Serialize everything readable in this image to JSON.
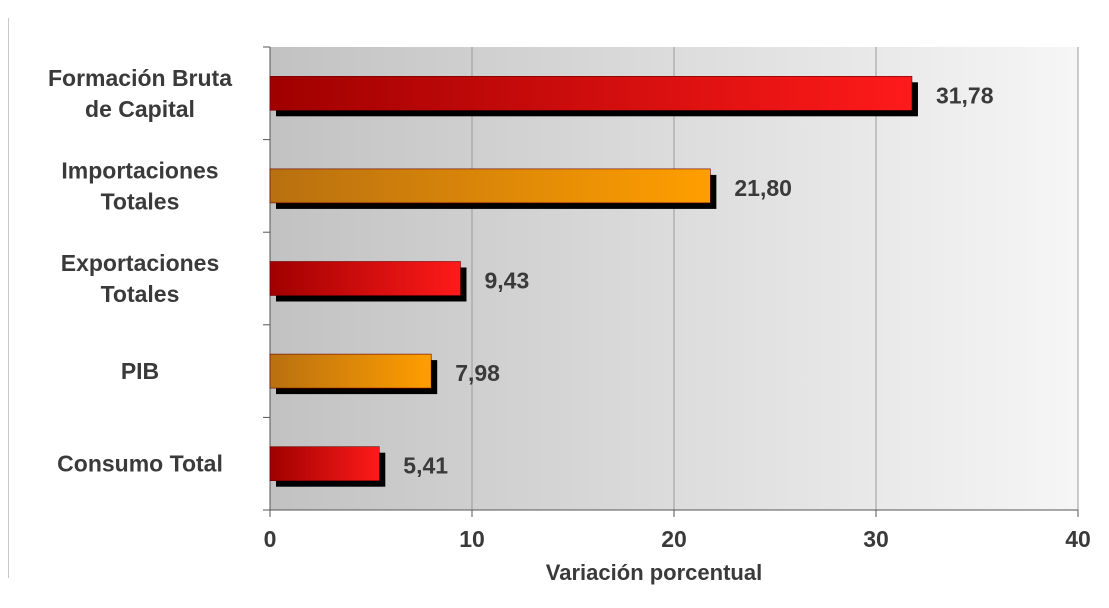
{
  "chart_data": {
    "type": "bar",
    "orientation": "horizontal",
    "categories": [
      [
        "Formación Bruta",
        "de Capital"
      ],
      [
        "Importaciones",
        "Totales"
      ],
      [
        "Exportaciones",
        "Totales"
      ],
      [
        "PIB"
      ],
      [
        "Consumo Total"
      ]
    ],
    "values": [
      31.78,
      21.8,
      9.43,
      7.98,
      5.41
    ],
    "value_labels": [
      "31,78",
      "21,80",
      "9,43",
      "7,98",
      "5,41"
    ],
    "bar_colors": [
      "red",
      "orange",
      "red",
      "orange",
      "red"
    ],
    "colors": {
      "red_dark": "#a00000",
      "red_light": "#ff1a1a",
      "orange_dark": "#b87010",
      "orange_light": "#ff9e00",
      "shadow": "#000000",
      "plot_bg_left": "#c2c2c2",
      "plot_bg_right": "#f6f6f6",
      "gridline": "#9a9a9a"
    },
    "xlabel": "Variación porcentual",
    "ylabel": "",
    "title": "",
    "xlim": [
      0,
      40
    ],
    "xticks": [
      0,
      10,
      20,
      30,
      40
    ],
    "grid": true,
    "legend": "none"
  }
}
